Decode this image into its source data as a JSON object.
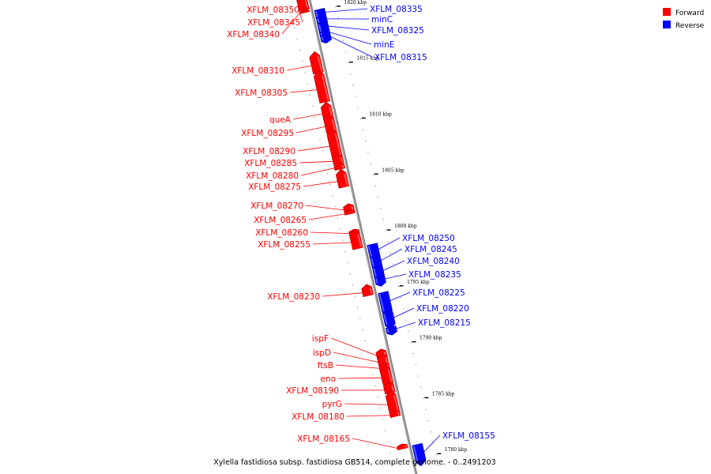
{
  "caption": "Xylella fastidiosa subsp. fastidiosa GB514, complete genome. - 0..2491203",
  "legend": {
    "forward_label": "Forward",
    "reverse_label": "Reverse",
    "forward_color": "#ff0000",
    "reverse_color": "#0000ff"
  },
  "colors": {
    "forward": "#ff0000",
    "forward_dark": "#aa0000",
    "reverse": "#0000ff",
    "reverse_dark": "#0000aa",
    "backbone": "#888888",
    "tick": "#000000"
  },
  "chart_data": {
    "type": "genome-map",
    "units": "kbp",
    "visible_range_kbp": [
      1779,
      1821
    ],
    "ticks": [
      {
        "kbp": 1820,
        "label": "1820 kbp"
      },
      {
        "kbp": 1815,
        "label": "1815 kbp"
      },
      {
        "kbp": 1810,
        "label": "1810 kbp"
      },
      {
        "kbp": 1805,
        "label": "1805 kbp"
      },
      {
        "kbp": 1800,
        "label": "1800 kbp"
      },
      {
        "kbp": 1795,
        "label": "1795 kbp"
      },
      {
        "kbp": 1790,
        "label": "1790 kbp"
      },
      {
        "kbp": 1785,
        "label": "1785 kbp"
      },
      {
        "kbp": 1780,
        "label": "1780 kbp"
      }
    ],
    "genes": [
      {
        "name": "XFLM_08350",
        "strand": "forward",
        "start_kbp": 1820.4,
        "end_kbp": 1821.5
      },
      {
        "name": "XFLM_08345",
        "strand": "forward",
        "start_kbp": 1820.3,
        "end_kbp": 1820.4
      },
      {
        "name": "XFLM_08340",
        "strand": "forward",
        "start_kbp": 1820.1,
        "end_kbp": 1820.2
      },
      {
        "name": "XFLM_08335",
        "strand": "reverse",
        "start_kbp": 1819.4,
        "end_kbp": 1820.1
      },
      {
        "name": "minC",
        "strand": "reverse",
        "start_kbp": 1818.9,
        "end_kbp": 1819.4
      },
      {
        "name": "XFLM_08325",
        "strand": "reverse",
        "start_kbp": 1818.1,
        "end_kbp": 1818.9
      },
      {
        "name": "minE",
        "strand": "reverse",
        "start_kbp": 1817.8,
        "end_kbp": 1818.1
      },
      {
        "name": "XFLM_08315",
        "strand": "reverse",
        "start_kbp": 1817.3,
        "end_kbp": 1817.8
      },
      {
        "name": "XFLM_08310",
        "strand": "forward",
        "start_kbp": 1814.7,
        "end_kbp": 1816.2
      },
      {
        "name": "XFLM_08305",
        "strand": "forward",
        "start_kbp": 1812.1,
        "end_kbp": 1814.5
      },
      {
        "name": "queA",
        "strand": "forward",
        "start_kbp": 1810.6,
        "end_kbp": 1811.7
      },
      {
        "name": "XFLM_08295",
        "strand": "forward",
        "start_kbp": 1809.4,
        "end_kbp": 1810.6
      },
      {
        "name": "XFLM_08290",
        "strand": "forward",
        "start_kbp": 1807.2,
        "end_kbp": 1809.3
      },
      {
        "name": "XFLM_08285",
        "strand": "forward",
        "start_kbp": 1806.6,
        "end_kbp": 1807.2
      },
      {
        "name": "XFLM_08280",
        "strand": "forward",
        "start_kbp": 1806.1,
        "end_kbp": 1806.5
      },
      {
        "name": "XFLM_08275",
        "strand": "forward",
        "start_kbp": 1804.5,
        "end_kbp": 1805.7
      },
      {
        "name": "XFLM_08270",
        "strand": "forward",
        "start_kbp": 1802.3,
        "end_kbp": 1802.8
      },
      {
        "name": "XFLM_08265",
        "strand": "forward",
        "start_kbp": 1802.1,
        "end_kbp": 1802.3
      },
      {
        "name": "XFLM_08260",
        "strand": "forward",
        "start_kbp": 1800.3,
        "end_kbp": 1800.6
      },
      {
        "name": "XFLM_08255",
        "strand": "forward",
        "start_kbp": 1799.0,
        "end_kbp": 1800.3
      },
      {
        "name": "XFLM_08250",
        "strand": "reverse",
        "start_kbp": 1798.0,
        "end_kbp": 1799.1
      },
      {
        "name": "XFLM_08245",
        "strand": "reverse",
        "start_kbp": 1797.1,
        "end_kbp": 1798.0
      },
      {
        "name": "XFLM_08240",
        "strand": "reverse",
        "start_kbp": 1796.2,
        "end_kbp": 1797.1
      },
      {
        "name": "XFLM_08235",
        "strand": "reverse",
        "start_kbp": 1795.6,
        "end_kbp": 1796.2
      },
      {
        "name": "XFLM_08230",
        "strand": "forward",
        "start_kbp": 1794.8,
        "end_kbp": 1795.5
      },
      {
        "name": "XFLM_08225",
        "strand": "reverse",
        "start_kbp": 1793.1,
        "end_kbp": 1794.8
      },
      {
        "name": "XFLM_08220",
        "strand": "reverse",
        "start_kbp": 1791.9,
        "end_kbp": 1793.0
      },
      {
        "name": "XFLM_08215",
        "strand": "reverse",
        "start_kbp": 1791.2,
        "end_kbp": 1791.7
      },
      {
        "name": "ispF",
        "strand": "forward",
        "start_kbp": 1789.3,
        "end_kbp": 1789.8
      },
      {
        "name": "ispD",
        "strand": "forward",
        "start_kbp": 1788.6,
        "end_kbp": 1789.3
      },
      {
        "name": "ftsB",
        "strand": "forward",
        "start_kbp": 1788.2,
        "end_kbp": 1788.6
      },
      {
        "name": "eno",
        "strand": "forward",
        "start_kbp": 1786.9,
        "end_kbp": 1788.2
      },
      {
        "name": "XFLM_08190",
        "strand": "forward",
        "start_kbp": 1786.1,
        "end_kbp": 1786.8
      },
      {
        "name": "pyrG",
        "strand": "forward",
        "start_kbp": 1784.4,
        "end_kbp": 1785.9
      },
      {
        "name": "XFLM_08180",
        "strand": "forward",
        "start_kbp": 1784.0,
        "end_kbp": 1784.4
      },
      {
        "name": "XFLM_08165",
        "strand": "forward",
        "start_kbp": 1781.1,
        "end_kbp": 1781.4
      },
      {
        "name": "XFLM_08155",
        "strand": "reverse",
        "start_kbp": 1779.7,
        "end_kbp": 1781.2
      }
    ]
  }
}
